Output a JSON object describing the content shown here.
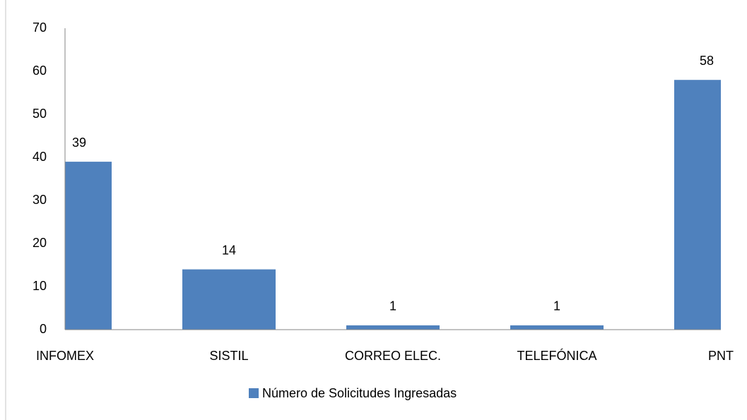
{
  "chart_data": {
    "type": "bar",
    "categories": [
      "INFOMEX",
      "SISTIL",
      "CORREO ELEC.",
      "TELEFÓNICA",
      "PNT"
    ],
    "series": [
      {
        "name": "Número de Solicitudes Ingresadas",
        "color": "#4f81bd",
        "values": [
          39,
          14,
          1,
          1,
          58
        ]
      }
    ],
    "ylim": [
      0,
      70
    ],
    "yticks": [
      0,
      10,
      20,
      30,
      40,
      50,
      60,
      70
    ],
    "grid": false,
    "legend": "bottom"
  }
}
